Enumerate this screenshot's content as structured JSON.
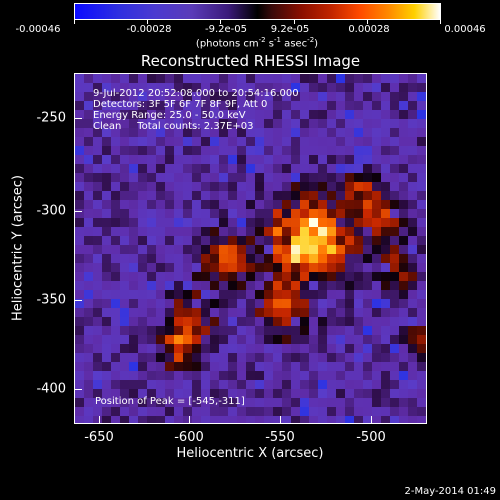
{
  "colorbar": {
    "ticks": [
      "-0.00046",
      "-0.00028",
      "-9.2e-05",
      "9.2e-05",
      "0.00028",
      "0.00046"
    ],
    "unit_main": "(photons cm",
    "unit_sup1": "-2",
    "unit_mid1": " s",
    "unit_sup2": "-1",
    "unit_mid2": " asec",
    "unit_sup3": "-2",
    "unit_end": ")",
    "colors": [
      "#0b0bff",
      "#5a3bb8",
      "#000000",
      "#c02400",
      "#ff8a00",
      "#ffffff"
    ]
  },
  "title": "Reconstructed RHESSI Image",
  "info": {
    "line1": "9-Jul-2012 20:52:08.000 to 20:54:16.000",
    "line2": "Detectors: 3F 5F 6F 7F 8F 9F, Att 0",
    "line3": "Energy Range: 25.0 - 50.0 keV",
    "line4": "Clean     Total counts: 2.37E+03"
  },
  "peak_text": "Position of Peak = [-545,-311]",
  "axes": {
    "ylabel": "Heliocentric Y (arcsec)",
    "xlabel": "Heliocentric X (arcsec)",
    "yticks": [
      "-250",
      "-300",
      "-350",
      "-400"
    ],
    "xticks": [
      "-650",
      "-600",
      "-550",
      "-500"
    ]
  },
  "footer": "2-May-2014 01:49"
}
